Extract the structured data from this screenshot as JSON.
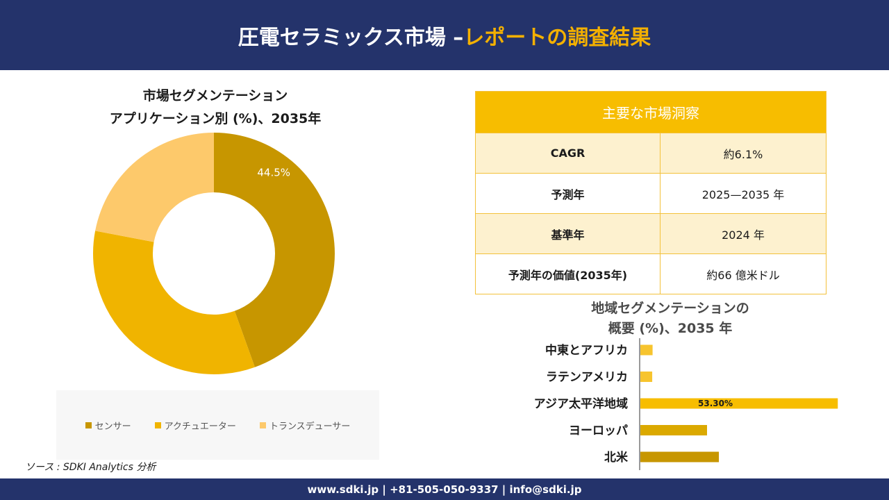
{
  "header": {
    "title_main": "圧電セラミックス市場 –",
    "title_accent": "レポートの調査結果"
  },
  "pie_title": {
    "line1": "市場セグメンテーション",
    "line2": "アプリケーション別 (%)、2035年"
  },
  "colors": {
    "header_bg": "#24336b",
    "accent": "#f3b000",
    "table_header": "#f7bd00",
    "table_odd": "#fdf1cf"
  },
  "insights": {
    "title": "主要な市場洞察",
    "rows": [
      {
        "key": "CAGR",
        "value": "約6.1%"
      },
      {
        "key": "予測年",
        "value": "2025—2035 年"
      },
      {
        "key": "基準年",
        "value": "2024 年"
      },
      {
        "key": "予測年の価値(2035年)",
        "value": "約66 億米ドル"
      }
    ]
  },
  "bar_title": {
    "line1": "地域セグメンテーションの",
    "line2": "概要 (%)、2035 年"
  },
  "source": "ソース : SDKI Analytics 分析",
  "footer": "www.sdki.jp | +81-505-050-9337 | info@sdki.jp",
  "chart_data": [
    {
      "type": "pie",
      "donut": true,
      "categories": [
        "センサー",
        "アクチュエーター",
        "トランスデューサー"
      ],
      "values": [
        44.5,
        33.5,
        22.0
      ],
      "labels": [
        "44.5%",
        "",
        ""
      ],
      "colors": [
        "#c79600",
        "#f0b400",
        "#fdc96b"
      ],
      "legend_position": "bottom"
    },
    {
      "type": "bar",
      "orientation": "horizontal",
      "categories": [
        "中東とアフリカ",
        "ラテンアメリカ",
        "アジア太平洋地域",
        "ヨーロッパ",
        "北米"
      ],
      "values": [
        3.3,
        3.2,
        53.3,
        18.0,
        21.2
      ],
      "labels": [
        "",
        "",
        "53.30%",
        "",
        ""
      ],
      "colors": [
        "#f7c42e",
        "#f7c42e",
        "#f7bd00",
        "#dba900",
        "#c79600"
      ]
    }
  ]
}
